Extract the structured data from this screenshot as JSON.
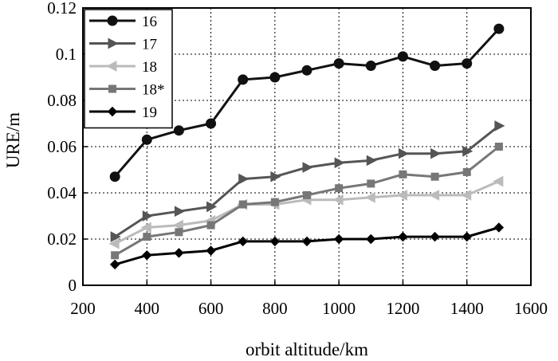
{
  "chart_data": {
    "type": "line",
    "title": "",
    "xlabel": "orbit altitude/km",
    "ylabel": "URE/m",
    "xlim": [
      200,
      1600
    ],
    "ylim": [
      0,
      0.12
    ],
    "xticks": [
      200,
      400,
      600,
      800,
      1000,
      1200,
      1400,
      1600
    ],
    "xtick_labels": [
      "200",
      "400",
      "600",
      "800",
      "1000",
      "1200",
      "1400",
      "1600"
    ],
    "yticks": [
      0,
      0.02,
      0.04,
      0.06,
      0.08,
      0.1,
      0.12
    ],
    "ytick_labels": [
      "0",
      "0.02",
      "0.04",
      "0.06",
      "0.08",
      "0.1",
      "0.12"
    ],
    "grid": true,
    "legend_position": "top-left",
    "x": [
      300,
      400,
      500,
      600,
      700,
      800,
      900,
      1000,
      1100,
      1200,
      1300,
      1400,
      1500
    ],
    "series": [
      {
        "name": "16",
        "color": "#111111",
        "marker": "circle",
        "values": [
          0.047,
          0.063,
          0.067,
          0.07,
          0.089,
          0.09,
          0.093,
          0.096,
          0.095,
          0.099,
          0.095,
          0.096,
          0.111
        ]
      },
      {
        "name": "17",
        "color": "#555555",
        "marker": "triangle-right",
        "values": [
          0.021,
          0.03,
          0.032,
          0.034,
          0.046,
          0.047,
          0.051,
          0.053,
          0.054,
          0.057,
          0.057,
          0.058,
          0.069
        ]
      },
      {
        "name": "18",
        "color": "#bbbbbb",
        "marker": "triangle-left",
        "values": [
          0.018,
          0.025,
          0.026,
          0.028,
          0.035,
          0.035,
          0.037,
          0.037,
          0.038,
          0.039,
          0.039,
          0.039,
          0.045
        ]
      },
      {
        "name": "18*",
        "color": "#777777",
        "marker": "square",
        "values": [
          0.013,
          0.021,
          0.023,
          0.026,
          0.035,
          0.036,
          0.039,
          0.042,
          0.044,
          0.048,
          0.047,
          0.049,
          0.06
        ]
      },
      {
        "name": "19",
        "color": "#000000",
        "marker": "diamond",
        "values": [
          0.009,
          0.013,
          0.014,
          0.015,
          0.019,
          0.019,
          0.019,
          0.02,
          0.02,
          0.021,
          0.021,
          0.021,
          0.025
        ]
      }
    ]
  }
}
